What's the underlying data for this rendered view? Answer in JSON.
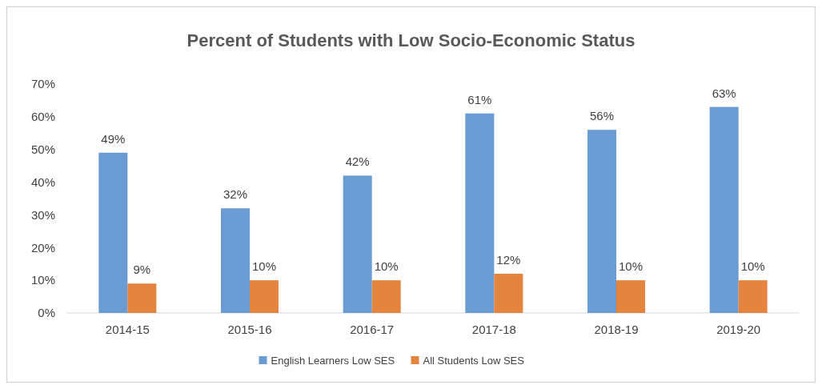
{
  "chart_data": {
    "type": "bar",
    "title": "Percent of Students with Low Socio-Economic Status",
    "categories": [
      "2014-15",
      "2015-16",
      "2016-17",
      "2017-18",
      "2018-19",
      "2019-20"
    ],
    "series": [
      {
        "name": "English Learners Low SES",
        "color": "#6a9bd3",
        "values": [
          49,
          32,
          42,
          61,
          56,
          63
        ],
        "value_labels": [
          "49%",
          "32%",
          "42%",
          "61%",
          "56%",
          "63%"
        ]
      },
      {
        "name": "All Students Low SES",
        "color": "#e5843f",
        "values": [
          9,
          10,
          10,
          12,
          10,
          10
        ],
        "value_labels": [
          "9%",
          "10%",
          "10%",
          "12%",
          "10%",
          "10%"
        ]
      }
    ],
    "ylim": [
      0,
      70
    ],
    "yticks": [
      {
        "value": 0,
        "label": "0%"
      },
      {
        "value": 10,
        "label": "10%"
      },
      {
        "value": 20,
        "label": "20%"
      },
      {
        "value": 30,
        "label": "30%"
      },
      {
        "value": 40,
        "label": "40%"
      },
      {
        "value": 50,
        "label": "50%"
      },
      {
        "value": 60,
        "label": "60%"
      },
      {
        "value": 70,
        "label": "70%"
      }
    ],
    "grid": false,
    "legend": "bottom"
  }
}
